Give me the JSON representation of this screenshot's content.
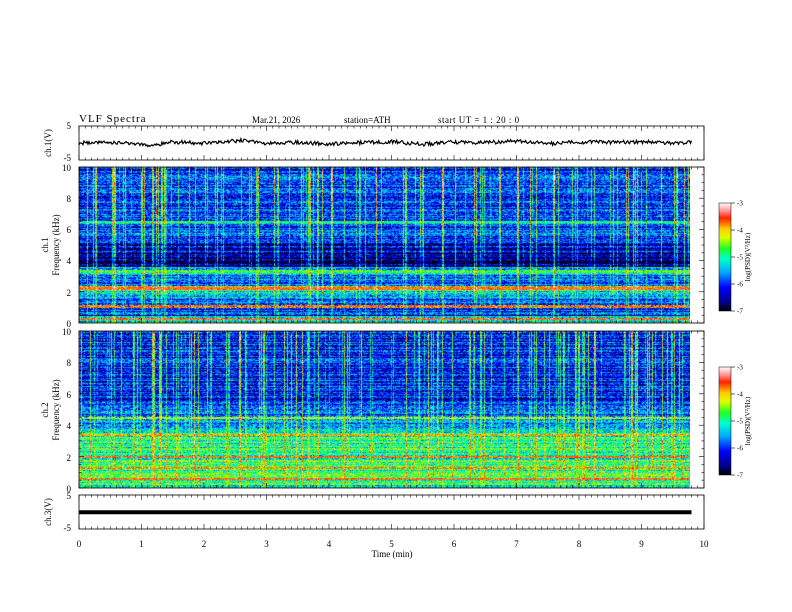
{
  "header": {
    "title": "VLF  Spectra",
    "date": "Mar.21, 2026",
    "station": "station=ATH",
    "start_ut": "start  UT  =   1 : 20 : 0"
  },
  "colors": {
    "background": "#ffffff",
    "axis": "#000000",
    "trace": "#000000"
  },
  "chart_data": [
    {
      "id": "ch1_voltage",
      "type": "line",
      "ylabel": "ch.1(V)",
      "ylim": [
        -5,
        5
      ],
      "yticks": [
        {
          "value": 5,
          "label": "5"
        },
        {
          "value": -5,
          "label": "-5"
        }
      ],
      "x": [
        0,
        0.5,
        1,
        1.1,
        1.5,
        2,
        2.5,
        2.6,
        3,
        3.5,
        4,
        4.5,
        5,
        5.5,
        6,
        6.5,
        7,
        7.5,
        8,
        8.5,
        9,
        9.5,
        9.8
      ],
      "values": [
        0,
        0.2,
        -0.2,
        -0.9,
        0.3,
        -0.1,
        0.6,
        0.8,
        -0.2,
        0.2,
        -0.3,
        0.1,
        0.4,
        -0.4,
        0.3,
        0.1,
        0.6,
        -0.2,
        0.3,
        0.2,
        0.4,
        -0.1,
        0.2
      ],
      "x_end_min": 9.8
    },
    {
      "id": "ch1_spectrogram",
      "type": "heatmap",
      "ylabel_top": "ch.1",
      "ylabel": "Frequency  (kHz)",
      "ylim": [
        0,
        10
      ],
      "yticks": [
        {
          "value": 0,
          "label": "0"
        },
        {
          "value": 2,
          "label": "2"
        },
        {
          "value": 4,
          "label": "4"
        },
        {
          "value": 6,
          "label": "6"
        },
        {
          "value": 8,
          "label": "8"
        },
        {
          "value": 10,
          "label": "10"
        }
      ],
      "colorbar": {
        "label": "log(PSD)(V²/Hz)",
        "range": [
          -7,
          -3
        ],
        "ticks": [
          {
            "value": -3,
            "label": "-3"
          },
          {
            "value": -4,
            "label": "-4"
          },
          {
            "value": -5,
            "label": "-5"
          },
          {
            "value": -6,
            "label": "-6"
          },
          {
            "value": -7,
            "label": "-7"
          }
        ]
      },
      "x_end_min": 9.8,
      "frequency_bands": [
        {
          "from": 0.0,
          "to": 0.45,
          "value": -5.2
        },
        {
          "from": 0.45,
          "to": 0.55,
          "value": -7.0
        },
        {
          "from": 0.55,
          "to": 1.6,
          "value": -5.9
        },
        {
          "from": 1.6,
          "to": 2.1,
          "value": -5.2
        },
        {
          "from": 2.1,
          "to": 2.4,
          "value": -4.4
        },
        {
          "from": 2.4,
          "to": 3.2,
          "value": -5.7
        },
        {
          "from": 3.2,
          "to": 3.6,
          "value": -5.3
        },
        {
          "from": 3.6,
          "to": 4.6,
          "value": -6.6
        },
        {
          "from": 4.6,
          "to": 5.4,
          "value": -6.3
        },
        {
          "from": 5.4,
          "to": 6.4,
          "value": -5.9
        },
        {
          "from": 6.4,
          "to": 6.6,
          "value": -5.2
        },
        {
          "from": 6.6,
          "to": 10.0,
          "value": -6.0
        }
      ],
      "lines": [
        {
          "freq": 0.3,
          "value": -3.5
        },
        {
          "freq": 1.1,
          "value": -3.8
        },
        {
          "freq": 2.25,
          "value": -3.6
        },
        {
          "freq": 3.35,
          "value": -4.6
        },
        {
          "freq": 6.5,
          "value": -5.0
        }
      ],
      "stripe_density": 0.22
    },
    {
      "id": "ch2_spectrogram",
      "type": "heatmap",
      "ylabel_top": "ch.2",
      "ylabel": "Frequency  (kHz)",
      "ylim": [
        0,
        10
      ],
      "yticks": [
        {
          "value": 0,
          "label": "0"
        },
        {
          "value": 2,
          "label": "2"
        },
        {
          "value": 4,
          "label": "4"
        },
        {
          "value": 6,
          "label": "6"
        },
        {
          "value": 8,
          "label": "8"
        },
        {
          "value": 10,
          "label": "10"
        }
      ],
      "colorbar": {
        "label": "log(PSD)(V²/Hz)",
        "range": [
          -7,
          -3
        ],
        "ticks": [
          {
            "value": -3,
            "label": "-3"
          },
          {
            "value": -4,
            "label": "-4"
          },
          {
            "value": -5,
            "label": "-5"
          },
          {
            "value": -6,
            "label": "-6"
          },
          {
            "value": -7,
            "label": "-7"
          }
        ]
      },
      "x_end_min": 9.8,
      "frequency_bands": [
        {
          "from": 0.0,
          "to": 0.3,
          "value": -5.0
        },
        {
          "from": 0.3,
          "to": 1.0,
          "value": -4.9
        },
        {
          "from": 1.0,
          "to": 2.6,
          "value": -4.9
        },
        {
          "from": 2.6,
          "to": 3.8,
          "value": -5.0
        },
        {
          "from": 3.8,
          "to": 4.5,
          "value": -5.6
        },
        {
          "from": 4.5,
          "to": 5.2,
          "value": -5.9
        },
        {
          "from": 5.2,
          "to": 6.0,
          "value": -6.1
        },
        {
          "from": 6.0,
          "to": 10.0,
          "value": -6.1
        }
      ],
      "lines": [
        {
          "freq": 0.6,
          "value": -3.6
        },
        {
          "freq": 1.3,
          "value": -3.8
        },
        {
          "freq": 2.0,
          "value": -3.7
        },
        {
          "freq": 3.4,
          "value": -3.9
        },
        {
          "freq": 4.5,
          "value": -4.3
        }
      ],
      "stripe_density": 0.25
    },
    {
      "id": "ch3_voltage",
      "type": "line",
      "ylabel": "ch.3(V)",
      "ylim": [
        -5,
        5
      ],
      "yticks": [
        {
          "value": 5,
          "label": "5"
        },
        {
          "value": -5,
          "label": "-5"
        }
      ],
      "x": [
        0,
        9.8
      ],
      "values": [
        -0.1,
        -0.1
      ],
      "x_end_min": 9.8
    }
  ],
  "x_axis": {
    "xlabel": "Time  (min)",
    "xlim": [
      0,
      10
    ],
    "ticks": [
      {
        "value": 0,
        "label": "0"
      },
      {
        "value": 1,
        "label": "1"
      },
      {
        "value": 2,
        "label": "2"
      },
      {
        "value": 3,
        "label": "3"
      },
      {
        "value": 4,
        "label": "4"
      },
      {
        "value": 5,
        "label": "5"
      },
      {
        "value": 6,
        "label": "6"
      },
      {
        "value": 7,
        "label": "7"
      },
      {
        "value": 8,
        "label": "8"
      },
      {
        "value": 9,
        "label": "9"
      },
      {
        "value": 10,
        "label": "10"
      }
    ]
  }
}
